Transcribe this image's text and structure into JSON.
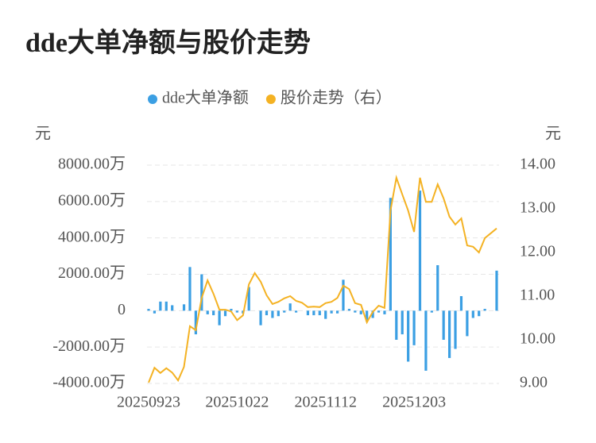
{
  "chart_data": {
    "type": "bar_line",
    "title": "dde大单净额与股价走势",
    "ylabel": "元",
    "y2label": "元",
    "categories": [
      "20250923",
      null,
      null,
      null,
      null,
      null,
      null,
      null,
      null,
      null,
      null,
      null,
      null,
      null,
      null,
      "20251022",
      null,
      null,
      null,
      null,
      null,
      null,
      null,
      null,
      null,
      null,
      null,
      null,
      null,
      null,
      "20251112",
      null,
      null,
      null,
      null,
      null,
      null,
      null,
      null,
      null,
      null,
      null,
      null,
      null,
      null,
      "20251203",
      null,
      null,
      null,
      null,
      null,
      null,
      null,
      null,
      null,
      null,
      null,
      null,
      null,
      null
    ],
    "series": [
      {
        "name": "dde大单净额",
        "type": "bar",
        "color": "#3b9fe3",
        "values": [
          100,
          -150,
          500,
          500,
          300,
          0,
          350,
          2400,
          -1300,
          2000,
          -200,
          -250,
          -800,
          -300,
          100,
          -100,
          -150,
          1300,
          0,
          -800,
          -250,
          -400,
          -300,
          -100,
          400,
          -100,
          0,
          -250,
          -250,
          -250,
          -450,
          -150,
          -150,
          1700,
          100,
          -100,
          -200,
          -600,
          -400,
          -100,
          -200,
          6200,
          -1600,
          -1300,
          -2800,
          -1900,
          6600,
          -3300,
          -100,
          2500,
          -1600,
          -2600,
          -2100,
          800,
          -1400,
          -400,
          -300,
          100,
          0,
          2200
        ]
      },
      {
        "name": "股价走势（右）",
        "type": "line",
        "axis": "y2",
        "color": "#f4b223",
        "values": [
          9.02,
          9.36,
          9.24,
          9.35,
          9.25,
          9.07,
          9.38,
          10.31,
          10.22,
          10.96,
          11.36,
          11.05,
          10.69,
          10.69,
          10.65,
          10.45,
          10.56,
          11.27,
          11.53,
          11.33,
          11.02,
          10.82,
          10.87,
          10.95,
          11.0,
          10.89,
          10.85,
          10.75,
          10.76,
          10.75,
          10.84,
          10.87,
          10.96,
          11.24,
          11.16,
          10.84,
          10.8,
          10.4,
          10.64,
          10.78,
          10.73,
          12.96,
          13.71,
          13.33,
          12.96,
          12.47,
          13.71,
          13.16,
          13.16,
          13.56,
          13.24,
          12.82,
          12.64,
          12.78,
          12.16,
          12.13,
          12.0,
          12.33,
          12.44,
          12.55
        ]
      }
    ],
    "ylim": [
      -4000,
      8000
    ],
    "yticks": [
      {
        "value": -4000,
        "label": "-4000.00万"
      },
      {
        "value": -2000,
        "label": "-2000.00万"
      },
      0,
      {
        "value": 2000,
        "label": "2000.00万"
      },
      {
        "value": 4000,
        "label": "4000.00万"
      },
      {
        "value": 6000,
        "label": "6000.00万"
      },
      {
        "value": 8000,
        "label": "8000.00万"
      }
    ],
    "y2lim": [
      9,
      14
    ],
    "y2ticks": [
      {
        "value": 9,
        "label": "9.00"
      },
      {
        "value": 10,
        "label": "10.00"
      },
      {
        "value": 11,
        "label": "11.00"
      },
      {
        "value": 12,
        "label": "12.00"
      },
      {
        "value": 13,
        "label": "13.00"
      },
      {
        "value": 14,
        "label": "14.00"
      }
    ],
    "grid": true,
    "legend": "top"
  }
}
